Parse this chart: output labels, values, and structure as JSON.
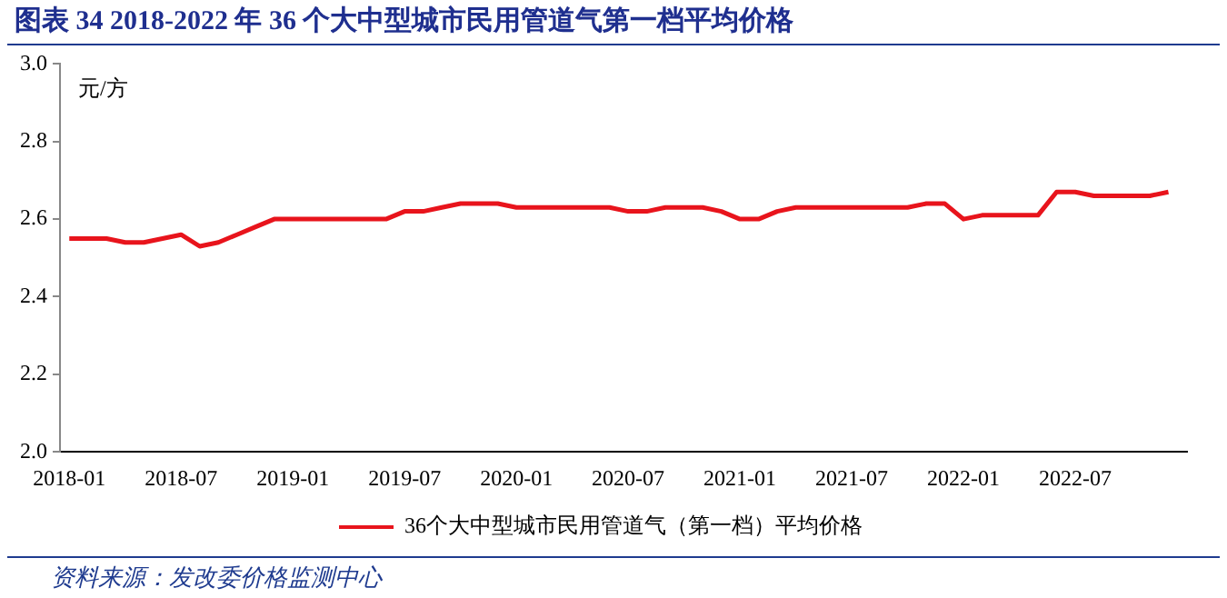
{
  "chart_data": {
    "type": "line",
    "title": "图表 34  2018-2022 年 36 个大中型城市民用管道气第一档平均价格",
    "ylabel": "元/方",
    "x": [
      "2018-01",
      "2018-02",
      "2018-03",
      "2018-04",
      "2018-05",
      "2018-06",
      "2018-07",
      "2018-08",
      "2018-09",
      "2018-10",
      "2018-11",
      "2018-12",
      "2019-01",
      "2019-02",
      "2019-03",
      "2019-04",
      "2019-05",
      "2019-06",
      "2019-07",
      "2019-08",
      "2019-09",
      "2019-10",
      "2019-11",
      "2019-12",
      "2020-01",
      "2020-02",
      "2020-03",
      "2020-04",
      "2020-05",
      "2020-06",
      "2020-07",
      "2020-08",
      "2020-09",
      "2020-10",
      "2020-11",
      "2020-12",
      "2021-01",
      "2021-02",
      "2021-03",
      "2021-04",
      "2021-05",
      "2021-06",
      "2021-07",
      "2021-08",
      "2021-09",
      "2021-10",
      "2021-11",
      "2021-12",
      "2022-01",
      "2022-02",
      "2022-03",
      "2022-04",
      "2022-05",
      "2022-06",
      "2022-07",
      "2022-08",
      "2022-09",
      "2022-10",
      "2022-11",
      "2022-12"
    ],
    "series": [
      {
        "name": "36个大中型城市民用管道气（第一档）平均价格",
        "color": "#e8141c",
        "values": [
          2.55,
          2.55,
          2.55,
          2.54,
          2.54,
          2.55,
          2.56,
          2.53,
          2.54,
          2.56,
          2.58,
          2.6,
          2.6,
          2.6,
          2.6,
          2.6,
          2.6,
          2.6,
          2.62,
          2.62,
          2.63,
          2.64,
          2.64,
          2.64,
          2.63,
          2.63,
          2.63,
          2.63,
          2.63,
          2.63,
          2.62,
          2.62,
          2.63,
          2.63,
          2.63,
          2.62,
          2.6,
          2.6,
          2.62,
          2.63,
          2.63,
          2.63,
          2.63,
          2.63,
          2.63,
          2.63,
          2.64,
          2.64,
          2.6,
          2.61,
          2.61,
          2.61,
          2.61,
          2.67,
          2.67,
          2.66,
          2.66,
          2.66,
          2.66,
          2.67
        ]
      }
    ],
    "xlim": [
      "2017-12-16",
      "2023-01"
    ],
    "xticks": [
      {
        "value": "2018-01",
        "label": "2018-01"
      },
      {
        "value": "2018-07",
        "label": "2018-07"
      },
      {
        "value": "2019-01",
        "label": "2019-01"
      },
      {
        "value": "2019-07",
        "label": "2019-07"
      },
      {
        "value": "2020-01",
        "label": "2020-01"
      },
      {
        "value": "2020-07",
        "label": "2020-07"
      },
      {
        "value": "2021-01",
        "label": "2021-01"
      },
      {
        "value": "2021-07",
        "label": "2021-07"
      },
      {
        "value": "2022-01",
        "label": "2022-01"
      },
      {
        "value": "2022-07",
        "label": "2022-07"
      }
    ],
    "ylim": [
      2.0,
      3.0
    ],
    "yticks": [
      {
        "value": 2.0,
        "label": "2.0"
      },
      {
        "value": 2.2,
        "label": "2.2"
      },
      {
        "value": 2.4,
        "label": "2.4"
      },
      {
        "value": 2.6,
        "label": "2.6"
      },
      {
        "value": 2.8,
        "label": "2.8"
      },
      {
        "value": 3.0,
        "label": "3.0"
      }
    ],
    "grid": false,
    "legend": "bottom",
    "marker": "none",
    "line_style": "solid",
    "annotations": [
      "资料来源：发改委价格监测中心"
    ]
  }
}
